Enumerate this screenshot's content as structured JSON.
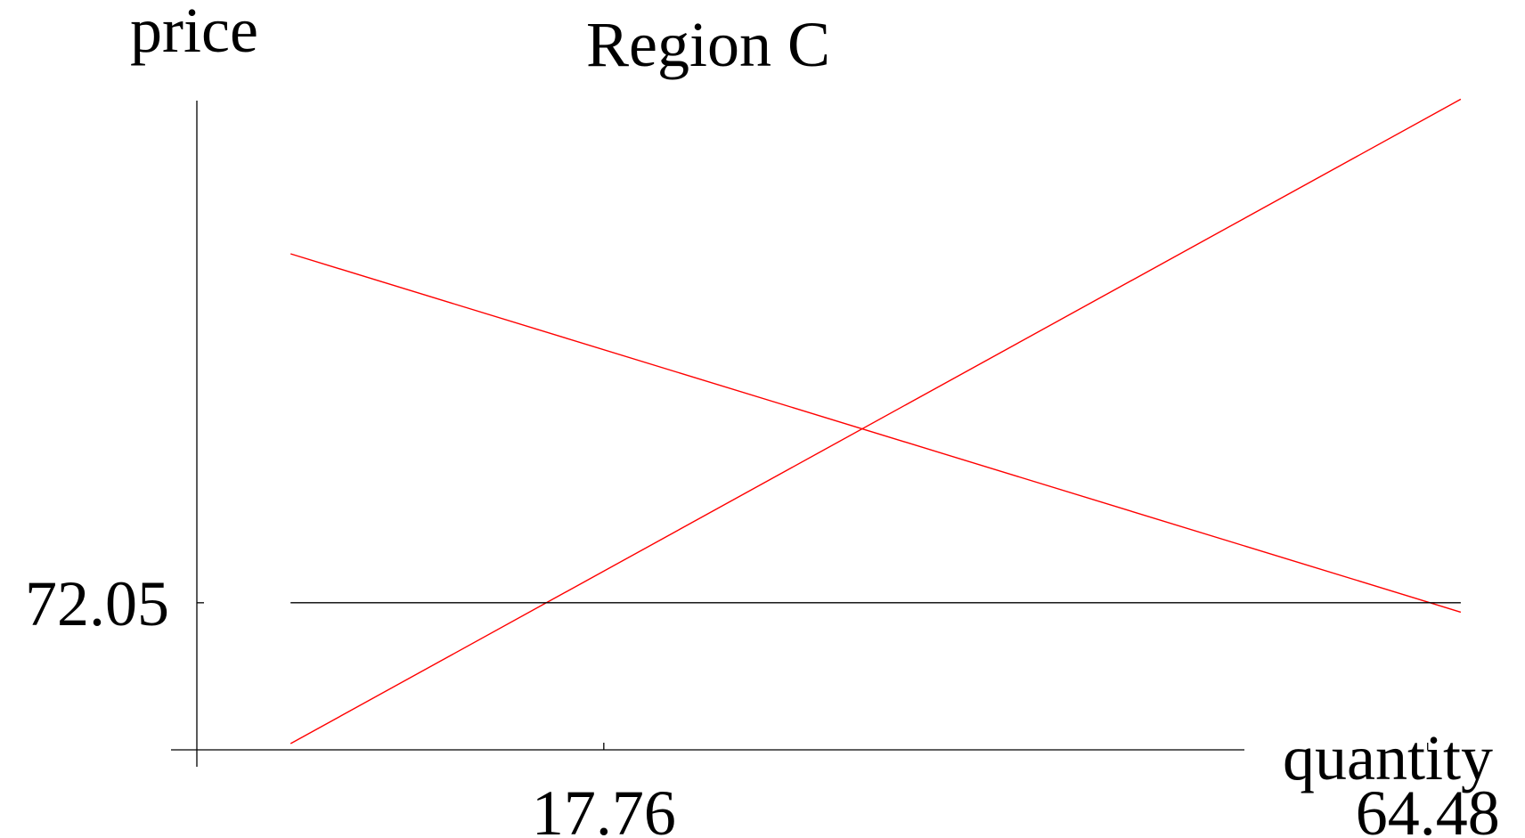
{
  "chart_data": {
    "type": "line",
    "title": "Region C",
    "xlabel": "quantity",
    "ylabel": "price",
    "x_ticks": [
      {
        "value": 17.76,
        "label": "17.76"
      },
      {
        "value": 64.48,
        "label": "64.48"
      }
    ],
    "y_ticks": [
      {
        "value": 72.05,
        "label": "72.05"
      }
    ],
    "xlim": [
      -16.48,
      70.0
    ],
    "ylim": [
      60.7,
      106.8
    ],
    "series": [
      {
        "x": [
          0.0,
          66.36
        ],
        "y": [
          96.2,
          71.4
        ],
        "color": "#ff0000"
      },
      {
        "x": [
          0.0,
          66.36
        ],
        "y": [
          62.3,
          106.9
        ],
        "color": "#ff0000"
      },
      {
        "x": [
          0.0,
          66.36
        ],
        "y": [
          72.05,
          72.05
        ],
        "color": "#000000"
      }
    ],
    "grid": false,
    "legend": "none"
  }
}
